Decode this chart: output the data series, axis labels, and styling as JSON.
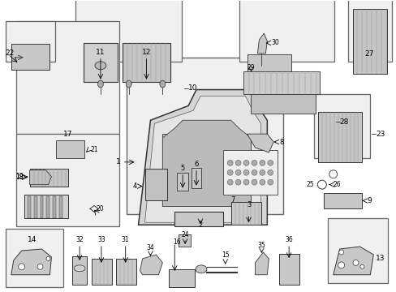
{
  "background_color": "#ffffff",
  "line_color": "#333333",
  "fill_light": "#e8e8e8",
  "fill_mid": "#c8c8c8",
  "fill_dark": "#aaaaaa",
  "box_bg": "#f0f0f0",
  "fig_width": 4.89,
  "fig_height": 3.6,
  "dpi": 100
}
